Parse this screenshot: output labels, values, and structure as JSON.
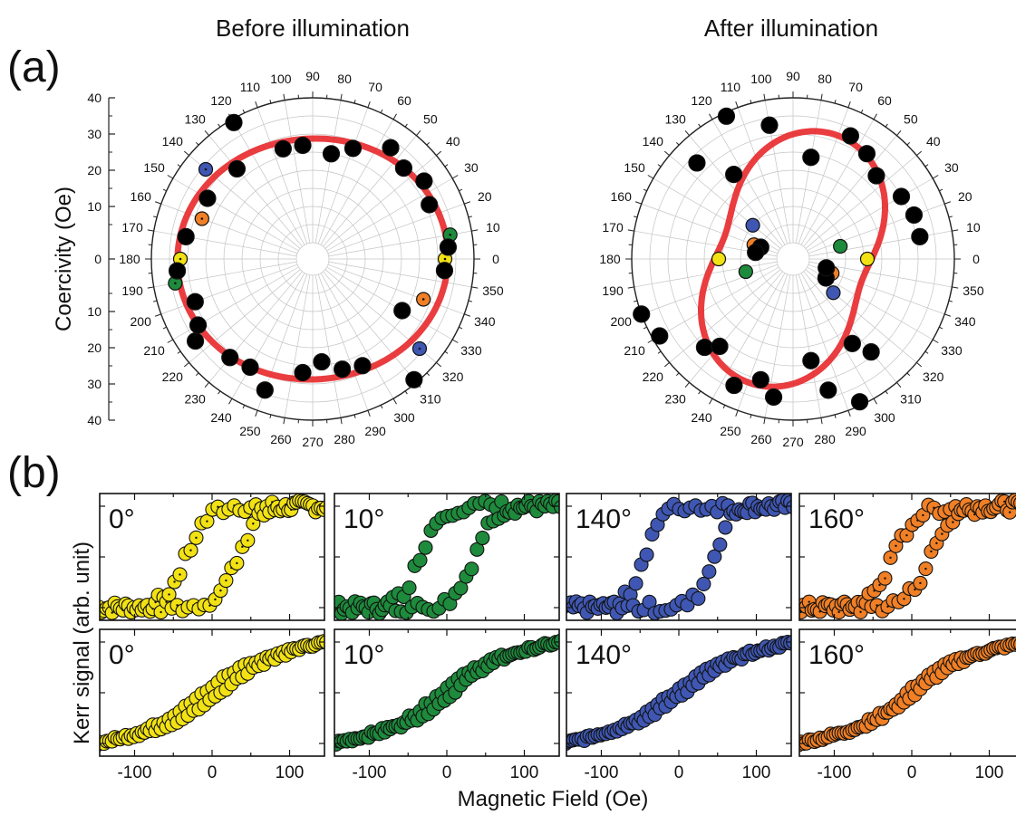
{
  "panel_labels": {
    "a": "(a)",
    "b": "(b)"
  },
  "polar_titles": [
    "Before illumination",
    "After illumination"
  ],
  "polar_ylabel": "Coercivity (Oe)",
  "polar_radial_ticks": [
    "40",
    "30",
    "20",
    "10",
    "0",
    "10",
    "20",
    "30",
    "40"
  ],
  "polar_angle_labels": [
    "0",
    "10",
    "20",
    "30",
    "40",
    "50",
    "60",
    "70",
    "80",
    "90",
    "100",
    "110",
    "120",
    "130",
    "140",
    "150",
    "160",
    "170",
    "180",
    "190",
    "200",
    "210",
    "220",
    "230",
    "240",
    "250",
    "260",
    "270",
    "280",
    "290",
    "300",
    "310",
    "320",
    "330",
    "340",
    "350"
  ],
  "kerr_ylabel": "Kerr signal (arb. unit)",
  "kerr_xlabel": "Magnetic Field (Oe)",
  "kerr_xticks": [
    "-100",
    "0",
    "100"
  ],
  "colors": {
    "fit": "#e8282b",
    "yellow": "#f2e214",
    "green": "#1e8a3c",
    "blue": "#3f57b2",
    "orange": "#f07f25",
    "black": "#000000"
  },
  "chart_data": [
    {
      "type": "scatter",
      "subtype": "polar",
      "title": "Before illumination",
      "ylabel": "Coercivity (Oe)",
      "r_range": [
        0,
        40
      ],
      "points": [
        {
          "angle": 0,
          "r": 32,
          "color": "yellow"
        },
        {
          "angle": 180,
          "r": 32,
          "color": "yellow"
        },
        {
          "angle": 10,
          "r": 34,
          "color": "green"
        },
        {
          "angle": 190,
          "r": 34,
          "color": "green"
        },
        {
          "angle": 140,
          "r": 34,
          "color": "blue"
        },
        {
          "angle": 320,
          "r": 34,
          "color": "blue"
        },
        {
          "angle": 160,
          "r": 28,
          "color": "orange"
        },
        {
          "angle": 340,
          "r": 28,
          "color": "orange"
        },
        {
          "angle": 5,
          "r": 33,
          "color": "black"
        },
        {
          "angle": 25,
          "r": 31,
          "color": "black"
        },
        {
          "angle": 35,
          "r": 33,
          "color": "black"
        },
        {
          "angle": 45,
          "r": 31,
          "color": "black"
        },
        {
          "angle": 55,
          "r": 33,
          "color": "black"
        },
        {
          "angle": 70,
          "r": 28,
          "color": "black"
        },
        {
          "angle": 80,
          "r": 25,
          "color": "black"
        },
        {
          "angle": 95,
          "r": 27,
          "color": "black"
        },
        {
          "angle": 105,
          "r": 27,
          "color": "black"
        },
        {
          "angle": 130,
          "r": 28,
          "color": "black"
        },
        {
          "angle": 120,
          "r": 39,
          "color": "black"
        },
        {
          "angle": 150,
          "r": 29,
          "color": "black"
        },
        {
          "angle": 170,
          "r": 31,
          "color": "black"
        },
        {
          "angle": 185,
          "r": 33,
          "color": "black"
        },
        {
          "angle": 200,
          "r": 30,
          "color": "black"
        },
        {
          "angle": 210,
          "r": 32,
          "color": "black"
        },
        {
          "angle": 215,
          "r": 35,
          "color": "black"
        },
        {
          "angle": 230,
          "r": 31,
          "color": "black"
        },
        {
          "angle": 240,
          "r": 30,
          "color": "black"
        },
        {
          "angle": 250,
          "r": 34,
          "color": "black"
        },
        {
          "angle": 265,
          "r": 27,
          "color": "black"
        },
        {
          "angle": 275,
          "r": 24,
          "color": "black"
        },
        {
          "angle": 285,
          "r": 27,
          "color": "black"
        },
        {
          "angle": 295,
          "r": 28,
          "color": "black"
        },
        {
          "angle": 310,
          "r": 39,
          "color": "black"
        },
        {
          "angle": 330,
          "r": 24,
          "color": "black"
        },
        {
          "angle": 355,
          "r": 32,
          "color": "black"
        }
      ]
    },
    {
      "type": "scatter",
      "subtype": "polar",
      "title": "After illumination",
      "r_range": [
        0,
        40
      ],
      "points": [
        {
          "angle": 0,
          "r": 16,
          "color": "yellow"
        },
        {
          "angle": 180,
          "r": 16,
          "color": "yellow"
        },
        {
          "angle": 15,
          "r": 9,
          "color": "green"
        },
        {
          "angle": 195,
          "r": 9,
          "color": "green"
        },
        {
          "angle": 140,
          "r": 10,
          "color": "blue"
        },
        {
          "angle": 320,
          "r": 10,
          "color": "blue"
        },
        {
          "angle": 160,
          "r": 7,
          "color": "orange"
        },
        {
          "angle": 340,
          "r": 7,
          "color": "orange"
        },
        {
          "angle": 20,
          "r": 31,
          "color": "black"
        },
        {
          "angle": 30,
          "r": 30,
          "color": "black"
        },
        {
          "angle": 45,
          "r": 28,
          "color": "black"
        },
        {
          "angle": 55,
          "r": 31,
          "color": "black"
        },
        {
          "angle": 65,
          "r": 33,
          "color": "black"
        },
        {
          "angle": 80,
          "r": 24,
          "color": "black"
        },
        {
          "angle": 100,
          "r": 33,
          "color": "black"
        },
        {
          "angle": 115,
          "r": 39,
          "color": "black"
        },
        {
          "angle": 125,
          "r": 24,
          "color": "black"
        },
        {
          "angle": 135,
          "r": 33,
          "color": "black"
        },
        {
          "angle": 10,
          "r": 31,
          "color": "black"
        },
        {
          "angle": 160,
          "r": 5,
          "color": "black"
        },
        {
          "angle": 170,
          "r": 6,
          "color": "black"
        },
        {
          "angle": 200,
          "r": 40,
          "color": "black"
        },
        {
          "angle": 210,
          "r": 38,
          "color": "black"
        },
        {
          "angle": 225,
          "r": 30,
          "color": "black"
        },
        {
          "angle": 230,
          "r": 27,
          "color": "black"
        },
        {
          "angle": 245,
          "r": 34,
          "color": "black"
        },
        {
          "angle": 255,
          "r": 30,
          "color": "black"
        },
        {
          "angle": 262,
          "r": 34,
          "color": "black"
        },
        {
          "angle": 280,
          "r": 24,
          "color": "black"
        },
        {
          "angle": 285,
          "r": 33,
          "color": "black"
        },
        {
          "angle": 295,
          "r": 39,
          "color": "black"
        },
        {
          "angle": 305,
          "r": 24,
          "color": "black"
        },
        {
          "angle": 310,
          "r": 29,
          "color": "black"
        },
        {
          "angle": 330,
          "r": 6,
          "color": "black"
        },
        {
          "angle": 345,
          "r": 5,
          "color": "black"
        }
      ]
    },
    {
      "type": "scatter",
      "subtype": "hysteresis-grid",
      "ylabel": "Kerr signal (arb. unit)",
      "xlabel": "Magnetic Field (Oe)",
      "xlim": [
        -145,
        145
      ],
      "ylim": [
        -1.25,
        1.25
      ],
      "panels": [
        {
          "row": 0,
          "col": 0,
          "label": "0°",
          "color": "yellow",
          "coercivity": 33,
          "slope": 0,
          "noise": 0.12,
          "width": 28
        },
        {
          "row": 0,
          "col": 1,
          "label": "10°",
          "color": "green",
          "coercivity": 35,
          "slope": 0,
          "noise": 0.12,
          "width": 25
        },
        {
          "row": 0,
          "col": 2,
          "label": "140°",
          "color": "blue",
          "coercivity": 45,
          "slope": 0,
          "noise": 0.12,
          "width": 22
        },
        {
          "row": 0,
          "col": 3,
          "label": "160°",
          "color": "orange",
          "coercivity": 24,
          "slope": 0,
          "noise": 0.12,
          "width": 30
        },
        {
          "row": 1,
          "col": 0,
          "label": "0°",
          "color": "yellow",
          "coercivity": 14,
          "slope": 1,
          "noise": 0.04,
          "width": 60
        },
        {
          "row": 1,
          "col": 1,
          "label": "10°",
          "color": "green",
          "coercivity": 10,
          "slope": 1,
          "noise": 0.04,
          "width": 55
        },
        {
          "row": 1,
          "col": 2,
          "label": "140°",
          "color": "blue",
          "coercivity": 9,
          "slope": 1,
          "noise": 0.04,
          "width": 65
        },
        {
          "row": 1,
          "col": 3,
          "label": "160°",
          "color": "orange",
          "coercivity": 7,
          "slope": 1,
          "noise": 0.04,
          "width": 55
        }
      ]
    }
  ]
}
